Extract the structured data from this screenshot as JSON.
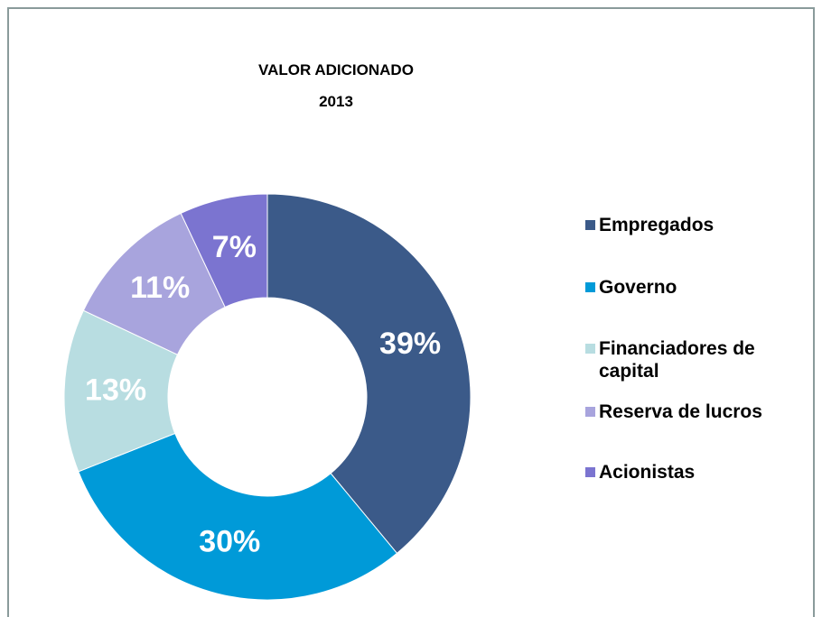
{
  "chart_data": {
    "type": "donut",
    "title": "VALOR ADICIONADO",
    "subtitle": "2013",
    "categories": [
      "Empregados",
      "Governo",
      "Financiadores de capital",
      "Reserva de lucros",
      "Acionistas"
    ],
    "values": [
      39,
      30,
      13,
      11,
      7
    ],
    "value_labels": [
      "39%",
      "30%",
      "13%",
      "11%",
      "7%"
    ],
    "colors": [
      "#3b5a89",
      "#009ad8",
      "#b8dde1",
      "#a8a4dd",
      "#7b74d0"
    ],
    "legend": "right"
  }
}
